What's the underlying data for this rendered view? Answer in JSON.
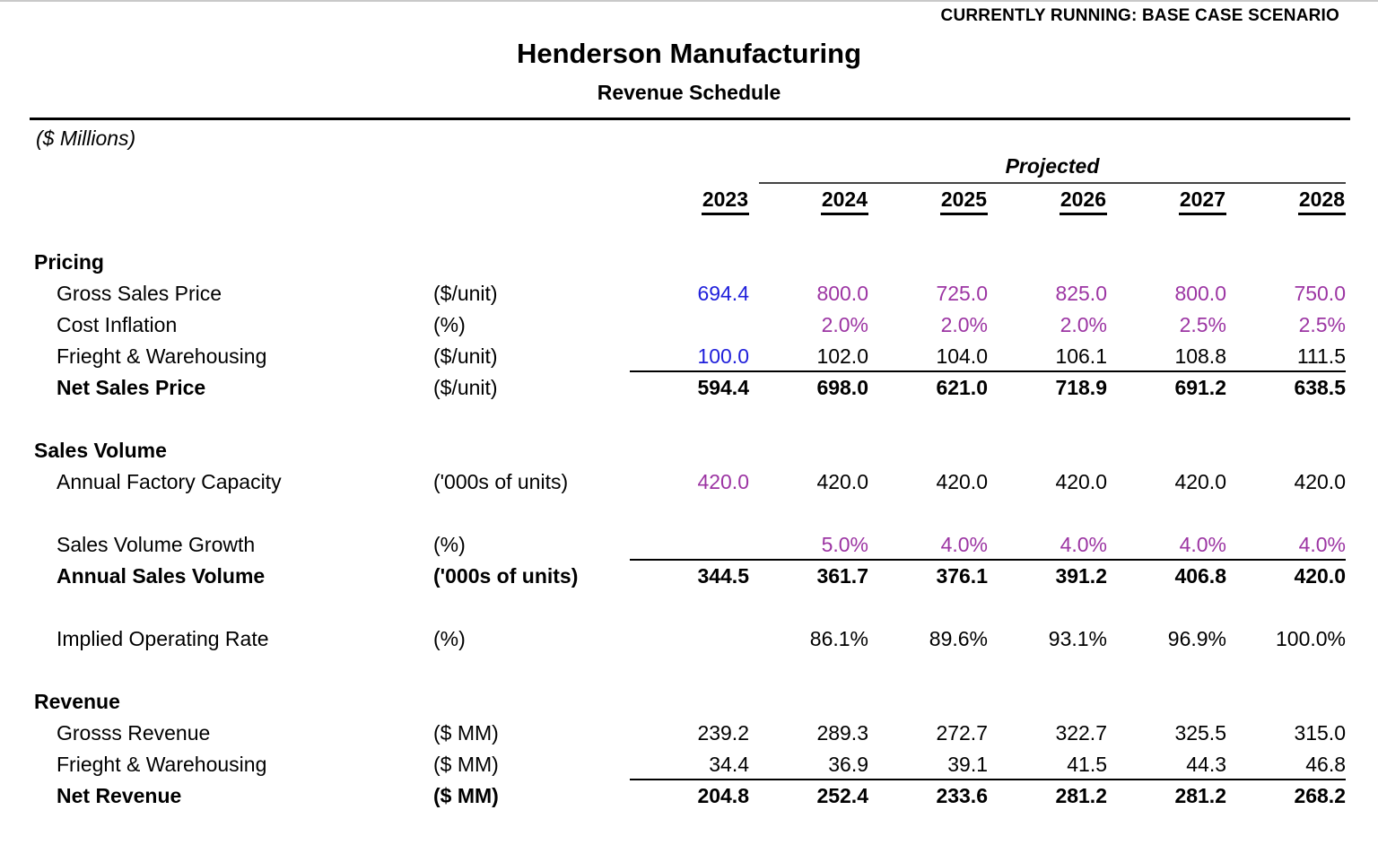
{
  "banner": {
    "text": "CURRENTLY RUNNING: BASE CASE SCENARIO"
  },
  "header": {
    "title": "Henderson Manufacturing",
    "subtitle": "Revenue Schedule",
    "units_note": "($ Millions)"
  },
  "columns": {
    "projected_label": "Projected",
    "years": [
      "2023",
      "2024",
      "2025",
      "2026",
      "2027",
      "2028"
    ]
  },
  "colors": {
    "input_blue": "#1F1FDB",
    "scenario_purple": "#9C35A3",
    "text_black": "#000000"
  },
  "table": {
    "rows": [
      {
        "type": "blank"
      },
      {
        "type": "section",
        "label": "Pricing"
      },
      {
        "type": "data",
        "label": "Gross Sales Price",
        "unit": "($/unit)",
        "values": [
          "694.4",
          "800.0",
          "725.0",
          "825.0",
          "800.0",
          "750.0"
        ],
        "styles": [
          "blue",
          "purple",
          "purple",
          "purple",
          "purple",
          "purple"
        ]
      },
      {
        "type": "data",
        "label": "Cost Inflation",
        "unit": "(%)",
        "values": [
          "",
          "2.0%",
          "2.0%",
          "2.0%",
          "2.5%",
          "2.5%"
        ],
        "styles": [
          "",
          "purple",
          "purple",
          "purple",
          "purple",
          "purple"
        ]
      },
      {
        "type": "data",
        "label": "Frieght & Warehousing",
        "unit": "($/unit)",
        "values": [
          "100.0",
          "102.0",
          "104.0",
          "106.1",
          "108.8",
          "111.5"
        ],
        "styles": [
          "blue",
          "",
          "",
          "",
          "",
          ""
        ]
      },
      {
        "type": "total",
        "label": "Net Sales Price",
        "unit": "($/unit)",
        "unit_bold": false,
        "values": [
          "594.4",
          "698.0",
          "621.0",
          "718.9",
          "691.2",
          "638.5"
        ]
      },
      {
        "type": "blank"
      },
      {
        "type": "section",
        "label": "Sales Volume"
      },
      {
        "type": "data",
        "label": "Annual Factory Capacity",
        "unit": "('000s of units)",
        "values": [
          "420.0",
          "420.0",
          "420.0",
          "420.0",
          "420.0",
          "420.0"
        ],
        "styles": [
          "purple",
          "",
          "",
          "",
          "",
          ""
        ]
      },
      {
        "type": "blank"
      },
      {
        "type": "data",
        "label": "Sales Volume Growth",
        "unit": "(%)",
        "values": [
          "",
          "5.0%",
          "4.0%",
          "4.0%",
          "4.0%",
          "4.0%"
        ],
        "styles": [
          "",
          "purple",
          "purple",
          "purple",
          "purple",
          "purple"
        ]
      },
      {
        "type": "total",
        "label": "Annual Sales Volume",
        "unit": "('000s of units)",
        "unit_bold": true,
        "values": [
          "344.5",
          "361.7",
          "376.1",
          "391.2",
          "406.8",
          "420.0"
        ]
      },
      {
        "type": "blank"
      },
      {
        "type": "data",
        "label": "Implied Operating Rate",
        "unit": "(%)",
        "values": [
          "",
          "86.1%",
          "89.6%",
          "93.1%",
          "96.9%",
          "100.0%"
        ],
        "styles": [
          "",
          "",
          "",
          "",
          "",
          ""
        ]
      },
      {
        "type": "blank"
      },
      {
        "type": "section",
        "label": "Revenue"
      },
      {
        "type": "data",
        "label": "Grosss Revenue",
        "unit": "($ MM)",
        "values": [
          "239.2",
          "289.3",
          "272.7",
          "322.7",
          "325.5",
          "315.0"
        ],
        "styles": [
          "",
          "",
          "",
          "",
          "",
          ""
        ]
      },
      {
        "type": "data",
        "label": "Frieght & Warehousing",
        "unit": "($ MM)",
        "values": [
          "34.4",
          "36.9",
          "39.1",
          "41.5",
          "44.3",
          "46.8"
        ],
        "styles": [
          "",
          "",
          "",
          "",
          "",
          ""
        ]
      },
      {
        "type": "total",
        "label": "Net Revenue",
        "unit": "($ MM)",
        "unit_bold": true,
        "values": [
          "204.8",
          "252.4",
          "233.6",
          "281.2",
          "281.2",
          "268.2"
        ]
      }
    ]
  }
}
